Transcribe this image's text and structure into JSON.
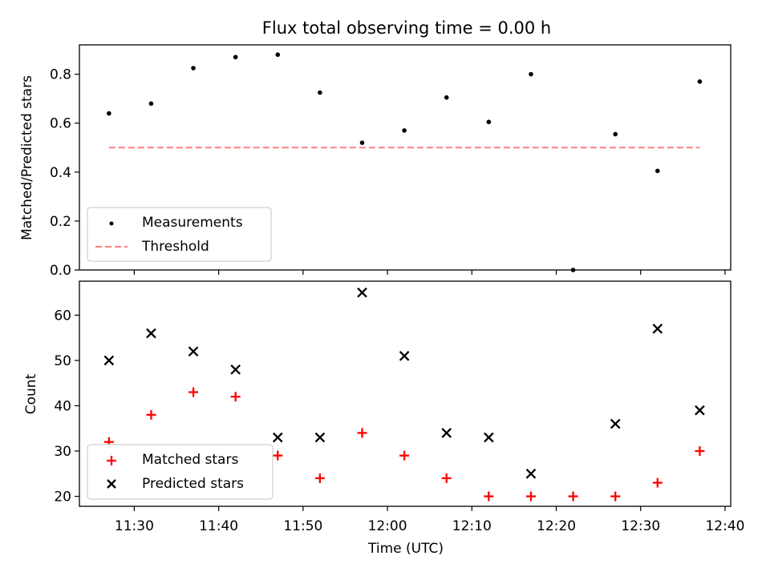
{
  "title": "Flux total observing time = 0.00 h",
  "colors": {
    "measurement": "#000000",
    "threshold": "#ff7f7f",
    "matched": "#ff0000",
    "predicted": "#000000"
  },
  "chart_data": [
    {
      "type": "scatter",
      "ylabel": "Matched/Predicted stars",
      "ylim": [
        0,
        0.92
      ],
      "yticks": [
        "0.0",
        "0.2",
        "0.4",
        "0.6",
        "0.8"
      ],
      "legend_position": "lower-left",
      "series": [
        {
          "name": "Measurements",
          "marker": "dot",
          "x": [
            "11:27",
            "11:32",
            "11:37",
            "11:42",
            "11:47",
            "11:52",
            "11:57",
            "12:02",
            "12:07",
            "12:12",
            "12:17",
            "12:22",
            "12:27",
            "12:32",
            "12:37"
          ],
          "y": [
            0.64,
            0.68,
            0.825,
            0.87,
            0.88,
            0.725,
            0.52,
            0.57,
            0.705,
            0.605,
            0.8,
            0.0,
            0.555,
            0.405,
            0.77
          ]
        },
        {
          "name": "Threshold",
          "marker": "dashed-line",
          "x": [
            "11:27",
            "12:37"
          ],
          "y": [
            0.5,
            0.5
          ]
        }
      ]
    },
    {
      "type": "scatter",
      "ylabel": "Count",
      "xlabel": "Time (UTC)",
      "ylim": [
        17.8,
        67.5
      ],
      "xlim": [
        "11:23:30",
        "12:40:40"
      ],
      "xticks": [
        "11:30",
        "11:40",
        "11:50",
        "12:00",
        "12:10",
        "12:20",
        "12:30",
        "12:40"
      ],
      "yticks": [
        "20",
        "30",
        "40",
        "50",
        "60"
      ],
      "legend_position": "lower-left",
      "series": [
        {
          "name": "Matched stars",
          "marker": "plus",
          "x": [
            "11:27",
            "11:32",
            "11:37",
            "11:42",
            "11:47",
            "11:52",
            "11:57",
            "12:02",
            "12:07",
            "12:12",
            "12:17",
            "12:22",
            "12:27",
            "12:32",
            "12:37"
          ],
          "y": [
            32,
            38,
            43,
            42,
            29,
            24,
            34,
            29,
            24,
            20,
            20,
            20,
            20,
            23,
            30
          ]
        },
        {
          "name": "Predicted stars",
          "marker": "x",
          "x": [
            "11:27",
            "11:32",
            "11:37",
            "11:42",
            "11:47",
            "11:52",
            "11:57",
            "12:02",
            "12:07",
            "12:12",
            "12:17",
            "12:22",
            "12:27",
            "12:32",
            "12:37"
          ],
          "y": [
            50,
            56,
            52,
            48,
            33,
            33,
            65,
            51,
            34,
            33,
            25,
            null,
            36,
            57,
            39
          ]
        }
      ]
    }
  ]
}
